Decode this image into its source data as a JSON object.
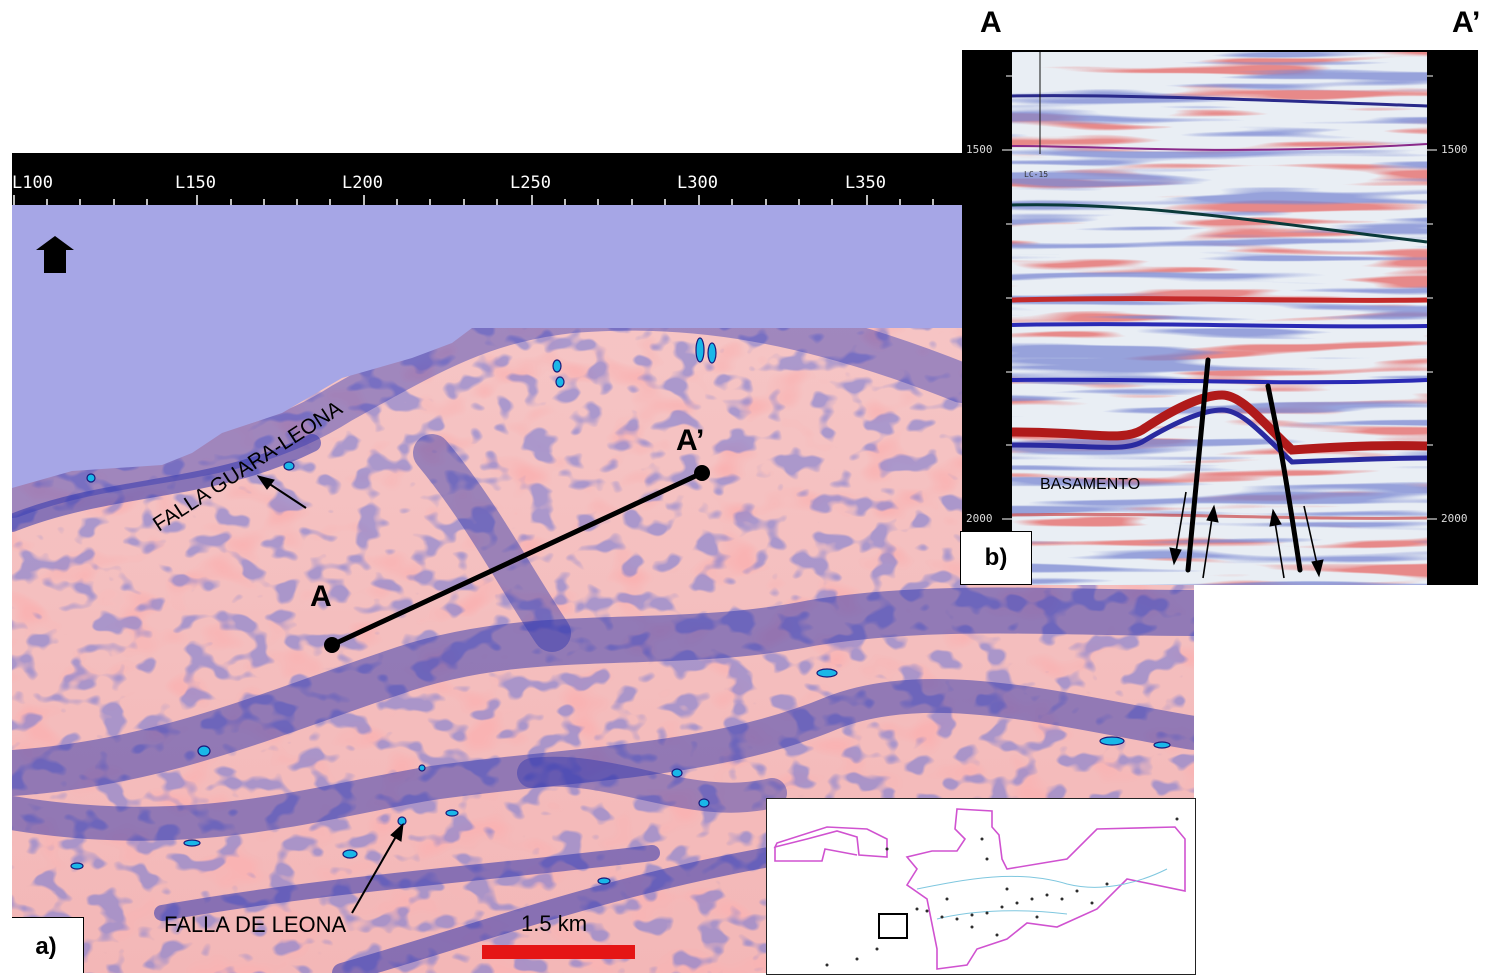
{
  "panel_a": {
    "ruler_labels": [
      "L100",
      "L150",
      "L200",
      "L250",
      "L300",
      "L350"
    ],
    "label_a": "A",
    "label_a_prime": "A’",
    "fault_guara": "FALLA GUARA-LEONA",
    "fault_leona": "FALLA DE LEONA",
    "scale_text": "1.5 km",
    "panel_tag": "a)",
    "colors": {
      "water": "#a6a6e6",
      "seismic_red": "#f1a8a8",
      "seismic_blue": "#2a2ea8",
      "scale_bar": "#e51515"
    }
  },
  "panel_b": {
    "label_a": "A",
    "label_a_prime": "A’",
    "depth_labels": [
      "1500",
      "2000"
    ],
    "well_label": "LC-15",
    "basement_label": "BASAMENTO",
    "panel_tag": "b)"
  },
  "inset": {
    "outline_color": "#d052d0"
  }
}
